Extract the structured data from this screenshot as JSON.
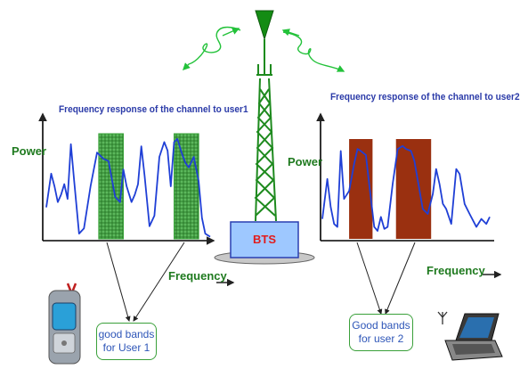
{
  "colors": {
    "curve": "#1f3fd6",
    "tower": "#1e8a1e",
    "antenna": "#1a8a1a",
    "bts_box": "#9ec8ff",
    "bts_text": "#e21b1b",
    "hatched_band": "#35a035",
    "solid_band": "#9a3010",
    "title": "#2a3aa8",
    "axis_label": "#1f7a1f",
    "box_text": "#2e56b8",
    "arrow": "#23c23a"
  },
  "icons": [
    "antenna-icon",
    "wireless-signal-icon",
    "mobile-phone-icon",
    "laptop-icon"
  ],
  "tower": {
    "label": "BTS"
  },
  "user1": {
    "title": "Frequency response of the channel to user1",
    "y_label": "Power",
    "x_label": "Frequency",
    "x_arrow": "→",
    "band_box": "good bands\nfor User 1",
    "curve": [
      [
        0,
        0.3
      ],
      [
        0.03,
        0.62
      ],
      [
        0.05,
        0.5
      ],
      [
        0.07,
        0.35
      ],
      [
        0.09,
        0.42
      ],
      [
        0.11,
        0.52
      ],
      [
        0.13,
        0.38
      ],
      [
        0.15,
        0.9
      ],
      [
        0.17,
        0.55
      ],
      [
        0.2,
        0.05
      ],
      [
        0.23,
        0.1
      ],
      [
        0.27,
        0.5
      ],
      [
        0.31,
        0.82
      ],
      [
        0.35,
        0.76
      ],
      [
        0.38,
        0.74
      ],
      [
        0.42,
        0.4
      ],
      [
        0.45,
        0.35
      ],
      [
        0.47,
        0.66
      ],
      [
        0.49,
        0.5
      ],
      [
        0.52,
        0.35
      ],
      [
        0.54,
        0.42
      ],
      [
        0.56,
        0.52
      ],
      [
        0.58,
        0.88
      ],
      [
        0.6,
        0.6
      ],
      [
        0.63,
        0.12
      ],
      [
        0.66,
        0.22
      ],
      [
        0.69,
        0.78
      ],
      [
        0.72,
        0.92
      ],
      [
        0.74,
        0.84
      ],
      [
        0.76,
        0.5
      ],
      [
        0.78,
        0.92
      ],
      [
        0.8,
        0.95
      ],
      [
        0.83,
        0.8
      ],
      [
        0.85,
        0.72
      ],
      [
        0.87,
        0.68
      ],
      [
        0.9,
        0.78
      ],
      [
        0.93,
        0.55
      ],
      [
        0.95,
        0.2
      ],
      [
        0.97,
        0.05
      ],
      [
        1,
        0.02
      ]
    ],
    "bands": [
      [
        0.32,
        0.47
      ],
      [
        0.78,
        0.93
      ]
    ],
    "band_style": "hatched"
  },
  "user2": {
    "title": "Frequency response of the channel to user2",
    "y_label": "Power",
    "x_label": "Frequency",
    "x_arrow": "→",
    "band_box": "Good bands\nfor user 2",
    "curve": [
      [
        0,
        0.2
      ],
      [
        0.03,
        0.6
      ],
      [
        0.05,
        0.32
      ],
      [
        0.07,
        0.15
      ],
      [
        0.09,
        0.12
      ],
      [
        0.11,
        0.88
      ],
      [
        0.13,
        0.4
      ],
      [
        0.16,
        0.48
      ],
      [
        0.19,
        0.75
      ],
      [
        0.21,
        0.9
      ],
      [
        0.23,
        0.88
      ],
      [
        0.26,
        0.84
      ],
      [
        0.28,
        0.55
      ],
      [
        0.31,
        0.12
      ],
      [
        0.33,
        0.08
      ],
      [
        0.35,
        0.22
      ],
      [
        0.37,
        0.1
      ],
      [
        0.39,
        0.12
      ],
      [
        0.42,
        0.55
      ],
      [
        0.45,
        0.9
      ],
      [
        0.48,
        0.93
      ],
      [
        0.5,
        0.9
      ],
      [
        0.53,
        0.88
      ],
      [
        0.55,
        0.78
      ],
      [
        0.6,
        0.3
      ],
      [
        0.63,
        0.25
      ],
      [
        0.66,
        0.45
      ],
      [
        0.68,
        0.7
      ],
      [
        0.7,
        0.55
      ],
      [
        0.72,
        0.35
      ],
      [
        0.74,
        0.3
      ],
      [
        0.77,
        0.15
      ],
      [
        0.8,
        0.7
      ],
      [
        0.82,
        0.65
      ],
      [
        0.85,
        0.35
      ],
      [
        0.88,
        0.25
      ],
      [
        0.92,
        0.12
      ],
      [
        0.95,
        0.2
      ],
      [
        0.98,
        0.15
      ],
      [
        1,
        0.22
      ]
    ],
    "bands": [
      [
        0.16,
        0.3
      ],
      [
        0.44,
        0.65
      ]
    ],
    "band_style": "solid"
  }
}
